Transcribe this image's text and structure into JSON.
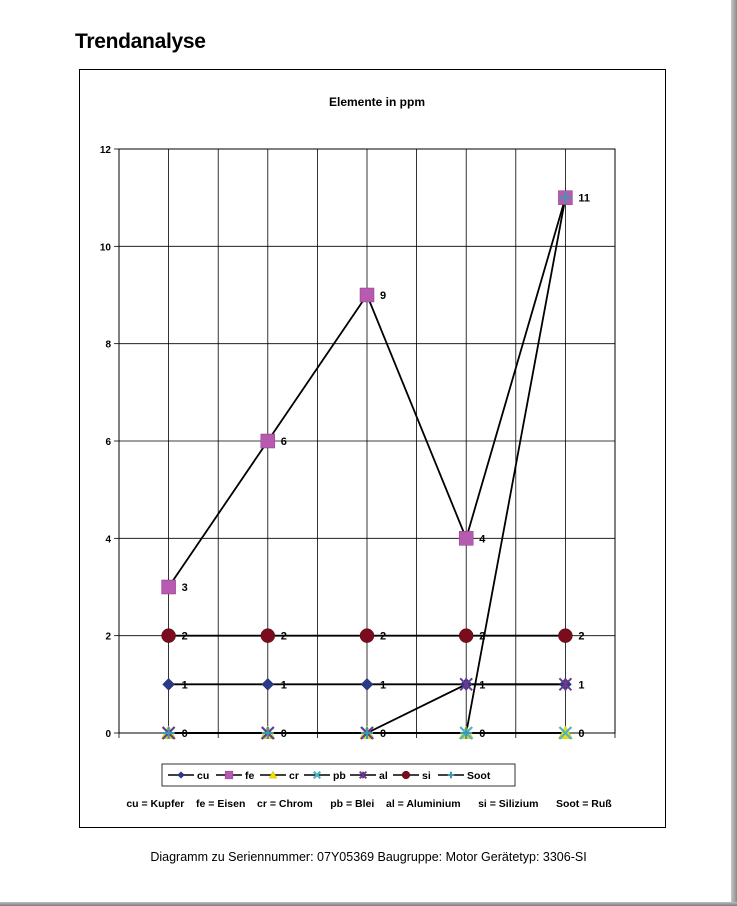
{
  "page": {
    "title": "Trendanalyse",
    "footer": "Diagramm zu Seriennummer: 07Y05369   Baugruppe: Motor  Gerätetyp: 3306-SI"
  },
  "chart_data": {
    "type": "line",
    "title": "Elemente in ppm",
    "xlabel": "",
    "ylabel": "",
    "ylim": [
      0,
      12
    ],
    "yticks": [
      0,
      2,
      4,
      6,
      8,
      10,
      12
    ],
    "x": [
      1,
      2,
      3,
      4,
      5
    ],
    "grid": true,
    "legend_position": "bottom",
    "series": [
      {
        "name": "cu",
        "values": [
          1,
          1,
          1,
          1,
          1
        ],
        "color": "#2b3a87",
        "marker": "diamond",
        "labels": true
      },
      {
        "name": "fe",
        "values": [
          3,
          6,
          9,
          4,
          11
        ],
        "color": "#b65bb0",
        "marker": "square",
        "labels": true
      },
      {
        "name": "cr",
        "values": [
          0,
          0,
          0,
          0,
          0
        ],
        "color": "#f0e000",
        "marker": "triangle",
        "labels": true
      },
      {
        "name": "pb",
        "values": [
          0,
          0,
          0,
          0,
          0
        ],
        "color": "#4fb4c8",
        "marker": "x",
        "labels": false
      },
      {
        "name": "al",
        "values": [
          0,
          0,
          0,
          1,
          1
        ],
        "color": "#6a3a8f",
        "marker": "star",
        "labels": false
      },
      {
        "name": "si",
        "values": [
          2,
          2,
          2,
          2,
          2
        ],
        "color": "#7a0c1e",
        "marker": "circle",
        "labels": true
      },
      {
        "name": "Soot",
        "values": [
          0,
          0,
          0,
          0,
          11
        ],
        "color": "#3a9ab0",
        "marker": "plus",
        "labels": false
      }
    ],
    "data_labels": [
      {
        "series": "cu",
        "index": 0,
        "text": "1"
      },
      {
        "series": "cu",
        "index": 1,
        "text": "1"
      },
      {
        "series": "cu",
        "index": 2,
        "text": "1"
      },
      {
        "series": "cu",
        "index": 3,
        "text": "1"
      },
      {
        "series": "cu",
        "index": 4,
        "text": "1"
      },
      {
        "series": "fe",
        "index": 0,
        "text": "3"
      },
      {
        "series": "fe",
        "index": 1,
        "text": "6"
      },
      {
        "series": "fe",
        "index": 2,
        "text": "9"
      },
      {
        "series": "fe",
        "index": 3,
        "text": "4"
      },
      {
        "series": "fe",
        "index": 4,
        "text": "11"
      },
      {
        "series": "si",
        "index": 0,
        "text": "2"
      },
      {
        "series": "si",
        "index": 1,
        "text": "2"
      },
      {
        "series": "si",
        "index": 2,
        "text": "2"
      },
      {
        "series": "si",
        "index": 3,
        "text": "2"
      },
      {
        "series": "si",
        "index": 4,
        "text": "2"
      },
      {
        "series": "cr",
        "index": 0,
        "text": "0"
      },
      {
        "series": "cr",
        "index": 1,
        "text": "0"
      },
      {
        "series": "cr",
        "index": 2,
        "text": "0"
      },
      {
        "series": "cr",
        "index": 3,
        "text": "0"
      },
      {
        "series": "cr",
        "index": 4,
        "text": "0"
      }
    ],
    "legend_key": "cu = Kupfer    fe = Eisen    cr = Chrom      pb = Blei    al = Aluminium      si = Silizium      Soot = Ruß"
  }
}
